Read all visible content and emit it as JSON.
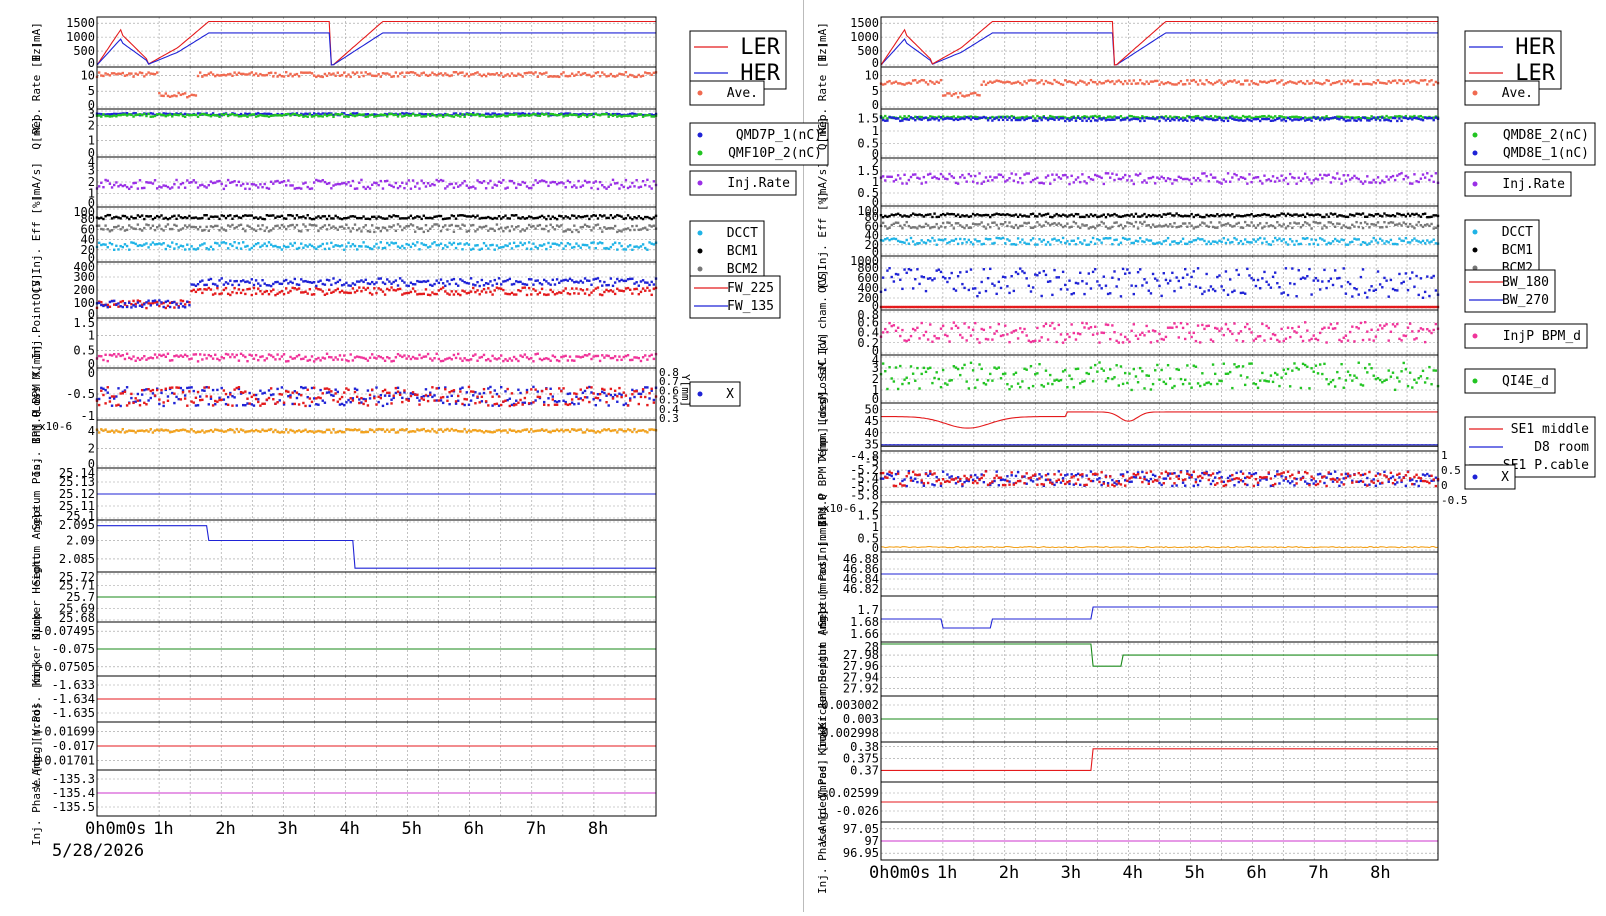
{
  "date_label": "5/28/2026",
  "x_axis": {
    "range_h": [
      0,
      9
    ],
    "ticks": [
      {
        "h": 0,
        "label": "0h0m0s"
      },
      {
        "h": 1,
        "label": "1h"
      },
      {
        "h": 2,
        "label": "2h"
      },
      {
        "h": 3,
        "label": "3h"
      },
      {
        "h": 4,
        "label": "4h"
      },
      {
        "h": 5,
        "label": "5h"
      },
      {
        "h": 6,
        "label": "6h"
      },
      {
        "h": 7,
        "label": "7h"
      },
      {
        "h": 8,
        "label": "8h"
      }
    ]
  },
  "colors": {
    "ler": "#e41a1c",
    "her": "#1f23d6",
    "ave": "#f06a50",
    "green": "#22c422",
    "purple": "#9a2fe6",
    "cyan": "#1fb3e6",
    "black": "#000000",
    "gray": "#777777",
    "pink": "#f0349a",
    "orange": "#f2a21e",
    "magenta": "#cc33cc",
    "darkgreen": "#1a8a1a"
  },
  "chart_data": [
    {
      "type": "line",
      "side": "left",
      "panels": [
        {
          "label": "I [mA]",
          "ticks": [
            "1500",
            "1000",
            "500",
            "0"
          ],
          "ylim": [
            0,
            1650
          ],
          "series": [
            {
              "name": "LER",
              "color": "ler"
            },
            {
              "name": "HER",
              "color": "her"
            }
          ],
          "legend": [
            "LER",
            "HER"
          ]
        },
        {
          "label": "Rep. Rate [Hz]",
          "ticks": [
            "10",
            "5",
            "0"
          ],
          "ylim": [
            0,
            12
          ],
          "series": [
            {
              "name": "Ave.",
              "color": "ave"
            }
          ],
          "legend": [
            "Ave."
          ]
        },
        {
          "label": "Q[nC]",
          "ticks": [
            "3",
            "2",
            "1",
            "0"
          ],
          "ylim": [
            0,
            3
          ],
          "series": [
            {
              "name": "QMD7P_1(nC)",
              "color": "her"
            },
            {
              "name": "QMF10P_2(nC)",
              "color": "green"
            }
          ],
          "legend": [
            "QMD7P_1(nC)",
            "QMF10P_2(nC)"
          ]
        },
        {
          "label": "[mA/s]",
          "ticks": [
            "4",
            "3",
            "2",
            "1",
            "0"
          ],
          "ylim": [
            0,
            4
          ],
          "series": [
            {
              "name": "Inj.Rate",
              "color": "purple"
            }
          ],
          "legend": [
            "Inj.Rate"
          ]
        },
        {
          "label": "Inj. Eff [%]",
          "ticks": [
            "100",
            "80",
            "60",
            "40",
            "20",
            "0"
          ],
          "ylim": [
            0,
            100
          ],
          "series": [
            {
              "name": "DCCT",
              "color": "cyan"
            },
            {
              "name": "BCM1",
              "color": "black"
            },
            {
              "name": "BCM2",
              "color": "gray"
            }
          ],
          "legend": [
            "DCCT",
            "BCM1",
            "BCM2"
          ]
        },
        {
          "label": "OCS",
          "ticks": [
            "400",
            "300",
            "200",
            "100",
            "0"
          ],
          "ylim": [
            0,
            400
          ],
          "series": [
            {
              "name": "FW_225",
              "color": "ler"
            },
            {
              "name": "FW_135",
              "color": "her"
            }
          ],
          "legend": [
            "FW_225",
            "FW_135"
          ]
        },
        {
          "label": "Loss M. Inj.Point [V]",
          "ticks": [
            "1.5",
            "1",
            "0.5",
            "0"
          ],
          "ylim": [
            0,
            1.5
          ],
          "series": [
            {
              "color": "pink"
            }
          ],
          "legend": []
        },
        {
          "label": "Inj.P BPM X[mm]",
          "ticks": [
            "0",
            "-0.5",
            "-1"
          ],
          "ylim": [
            -1,
            0
          ],
          "right_ticks": [
            "0.8",
            "0.7",
            "0.6",
            "0.5",
            "0.4",
            "0.3"
          ],
          "right_label": "Y[mm]",
          "series": [
            {
              "name": "X",
              "color": "her"
            },
            {
              "color": "ler"
            }
          ],
          "legend": [
            "X"
          ]
        },
        {
          "label": "Inj. BPM Q",
          "ticks": [
            "4",
            "2",
            "0"
          ],
          "ylim": [
            0,
            5
          ],
          "exponent": "x10-6",
          "series": [
            {
              "color": "orange"
            }
          ],
          "legend": []
        },
        {
          "label": "Septum Pos.",
          "ticks": [
            "25.14",
            "25.13",
            "25.12",
            "25.11",
            "25.1"
          ],
          "ylim": [
            25.1,
            25.14
          ],
          "series": [
            {
              "color": "her"
            }
          ],
          "legend": []
        },
        {
          "label": "Septum Angle",
          "ticks": [
            "2.095",
            "2.09",
            "2.085"
          ],
          "ylim": [
            2.082,
            2.095
          ],
          "series": [
            {
              "color": "her"
            }
          ],
          "legend": []
        },
        {
          "label": "Kicker Height",
          "ticks": [
            "25.72",
            "25.71",
            "25.7",
            "25.69",
            "25.68"
          ],
          "ylim": [
            25.68,
            25.72
          ],
          "series": [
            {
              "color": "darkgreen"
            }
          ],
          "legend": []
        },
        {
          "label": "Kicker Jump",
          "ticks": [
            "-0.07495",
            "-0.075",
            "-0.07505"
          ],
          "ylim": [
            -0.07507,
            -0.07493
          ],
          "series": [
            {
              "color": "darkgreen"
            }
          ],
          "legend": []
        },
        {
          "label": "V.Pos. [mm]",
          "ticks": [
            "-1.633",
            "-1.634",
            "-1.635"
          ],
          "ylim": [
            -1.6355,
            -1.6325
          ],
          "series": [
            {
              "color": "ler"
            }
          ],
          "legend": []
        },
        {
          "label": "V.Ang. [mrad]",
          "ticks": [
            "-0.01699",
            "-0.017",
            "-0.01701"
          ],
          "ylim": [
            -0.017015,
            -0.016985
          ],
          "series": [
            {
              "color": "ler"
            }
          ],
          "legend": []
        },
        {
          "label": "Inj. Phase [deg]",
          "ticks": [
            "-135.3",
            "-135.4",
            "-135.5"
          ],
          "ylim": [
            -135.55,
            -135.25
          ],
          "series": [
            {
              "color": "magenta"
            }
          ],
          "legend": []
        }
      ]
    },
    {
      "type": "line",
      "side": "right",
      "panels": [
        {
          "label": "I [mA]",
          "ticks": [
            "1500",
            "1000",
            "500",
            "0"
          ],
          "ylim": [
            0,
            1650
          ],
          "series": [
            {
              "name": "HER",
              "color": "her"
            },
            {
              "name": "LER",
              "color": "ler"
            }
          ],
          "legend": [
            "HER",
            "LER"
          ]
        },
        {
          "label": "Rep. Rate [Hz]",
          "ticks": [
            "10",
            "5",
            "0"
          ],
          "ylim": [
            0,
            12
          ],
          "series": [
            {
              "name": "Ave.",
              "color": "ave"
            }
          ],
          "legend": [
            "Ave."
          ]
        },
        {
          "label": "Q[nC]",
          "ticks": [
            "1.5",
            "1",
            "0.5",
            "0"
          ],
          "ylim": [
            0,
            1.8
          ],
          "series": [
            {
              "name": "QMD8E_2(nC)",
              "color": "green"
            },
            {
              "name": "QMD8E_1(nC)",
              "color": "her"
            }
          ],
          "legend": [
            "QMD8E_2(nC)",
            "QMD8E_1(nC)"
          ]
        },
        {
          "label": "[mA/s]",
          "ticks": [
            "2",
            "1.5",
            "1",
            "0.5",
            "0"
          ],
          "ylim": [
            0,
            2
          ],
          "series": [
            {
              "name": "Inj.Rate",
              "color": "purple"
            }
          ],
          "legend": [
            "Inj.Rate"
          ]
        },
        {
          "label": "Inj. Eff [%]",
          "ticks": [
            "100",
            "80",
            "60",
            "40",
            "20",
            "0"
          ],
          "ylim": [
            0,
            100
          ],
          "series": [
            {
              "name": "DCCT",
              "color": "cyan"
            },
            {
              "name": "BCM1",
              "color": "black"
            },
            {
              "name": "BCM2",
              "color": "gray"
            }
          ],
          "legend": [
            "DCCT",
            "BCM1",
            "BCM2"
          ]
        },
        {
          "label": "OCS",
          "ticks": [
            "1000",
            "800",
            "600",
            "400",
            "200",
            "0"
          ],
          "ylim": [
            0,
            1000
          ],
          "series": [
            {
              "name": "BW_180",
              "color": "ler"
            },
            {
              "name": "BW_270",
              "color": "her"
            }
          ],
          "legend": [
            "BW_180",
            "BW_270"
          ]
        },
        {
          "label": "LossM.Ion cham. [V]",
          "ticks": [
            "0.8",
            "0.6",
            "0.4",
            "0.2",
            "0"
          ],
          "ylim": [
            0,
            0.8
          ],
          "series": [
            {
              "name": "InjP BPM_d",
              "color": "pink"
            }
          ],
          "legend": [
            "InjP BPM_d"
          ]
        },
        {
          "label": "LossM. SiC [V]",
          "ticks": [
            "4",
            "3",
            "2",
            "1",
            "0"
          ],
          "ylim": [
            0,
            4
          ],
          "series": [
            {
              "name": "QI4E_d",
              "color": "green"
            }
          ],
          "legend": [
            "QI4E_d"
          ]
        },
        {
          "label": "Temp. [deg]",
          "ticks": [
            "50",
            "45",
            "40",
            "35"
          ],
          "ylim": [
            33,
            52
          ],
          "series": [
            {
              "name": "SE1 middle",
              "color": "ler"
            },
            {
              "name": "D8 room",
              "color": "her"
            },
            {
              "name": "SE1 P.cable",
              "color": "black"
            }
          ],
          "legend": [
            "SE1 middle",
            "D8 room",
            "SE1 P.cable"
          ]
        },
        {
          "label": "Inj.P BPM X[mm]",
          "ticks": [
            "-4.8",
            "-5",
            "-5.2",
            "-5.4",
            "-5.6",
            "-5.8"
          ],
          "ylim": [
            -5.9,
            -4.8
          ],
          "right_ticks": [
            "1",
            "0.5",
            "0",
            "-0.5"
          ],
          "series": [
            {
              "name": "X",
              "color": "her"
            },
            {
              "color": "ler"
            }
          ],
          "legend": [
            "X"
          ]
        },
        {
          "label": "Inj. BPM Q",
          "ticks": [
            "2",
            "1.5",
            "1",
            "0.5",
            "0"
          ],
          "ylim": [
            0,
            2
          ],
          "exponent": "x10-6",
          "series": [
            {
              "color": "orange"
            }
          ],
          "legend": []
        },
        {
          "label": "Septum Pos. [mm]",
          "ticks": [
            "46.88",
            "46.86",
            "46.84",
            "46.82"
          ],
          "ylim": [
            46.81,
            46.89
          ],
          "series": [
            {
              "color": "her"
            }
          ],
          "legend": []
        },
        {
          "label": "Septum Angle [mrad]",
          "ticks": [
            "1.7",
            "1.68",
            "1.66"
          ],
          "ylim": [
            1.65,
            1.72
          ],
          "series": [
            {
              "color": "her"
            }
          ],
          "legend": []
        },
        {
          "label": "Kicker Height [mm]",
          "ticks": [
            "28",
            "27.98",
            "27.96",
            "27.94",
            "27.92"
          ],
          "ylim": [
            27.91,
            28.0
          ],
          "series": [
            {
              "color": "darkgreen"
            }
          ],
          "legend": []
        },
        {
          "label": "Kicker Jump",
          "ticks": [
            "0.003002",
            "0.003",
            "0.002998"
          ],
          "ylim": [
            0.002997,
            0.003003
          ],
          "series": [
            {
              "color": "darkgreen"
            }
          ],
          "legend": []
        },
        {
          "label": "V.Pos. [mm]",
          "ticks": [
            "0.38",
            "0.375",
            "0.37"
          ],
          "ylim": [
            0.366,
            0.381
          ],
          "series": [
            {
              "color": "ler"
            }
          ],
          "legend": []
        },
        {
          "label": "V.Ang. [mrad]",
          "ticks": [
            "-0.02599",
            "-0.026"
          ],
          "ylim": [
            -0.026005,
            -0.025985
          ],
          "series": [
            {
              "color": "ler"
            }
          ],
          "legend": []
        },
        {
          "label": "Inj. Phase [deg]",
          "ticks": [
            "97.05",
            "97",
            "96.95"
          ],
          "ylim": [
            96.93,
            97.07
          ],
          "series": [
            {
              "color": "magenta"
            }
          ],
          "legend": []
        }
      ]
    }
  ]
}
